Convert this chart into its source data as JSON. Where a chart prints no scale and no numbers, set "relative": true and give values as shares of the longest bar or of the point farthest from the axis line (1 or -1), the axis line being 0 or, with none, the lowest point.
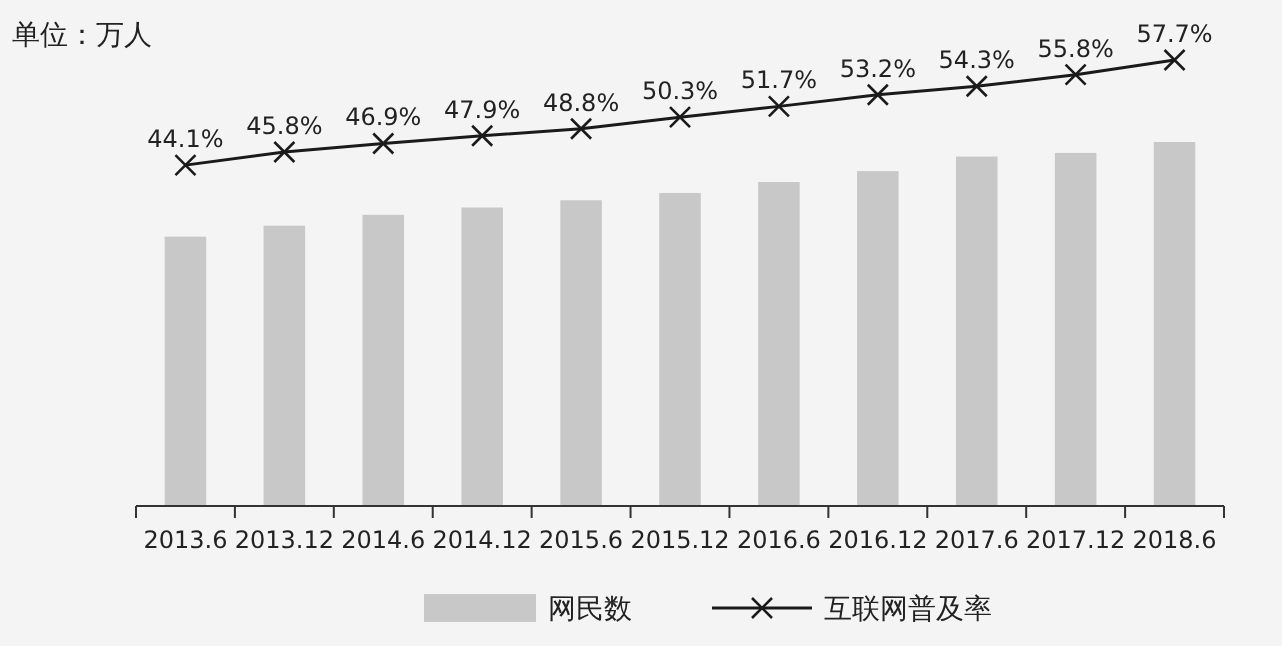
{
  "chart_data": [
    {
      "type": "bar",
      "relative": true,
      "categories": [
        "2013.6",
        "2013.12",
        "2014.6",
        "2014.12",
        "2015.6",
        "2015.12",
        "2016.6",
        "2016.12",
        "2017.6",
        "2017.12",
        "2018.6"
      ],
      "series": [
        {
          "name": "网民数",
          "color": "#c8c8c8",
          "values": [
            0.74,
            0.77,
            0.8,
            0.82,
            0.84,
            0.86,
            0.89,
            0.92,
            0.96,
            0.97,
            1
          ]
        }
      ],
      "legend": "bottom",
      "annotations": [
        "单位：万人"
      ]
    },
    {
      "type": "line",
      "tick_labels": false,
      "categories": [
        "2013.6",
        "2013.12",
        "2014.6",
        "2014.12",
        "2015.6",
        "2015.12",
        "2016.6",
        "2016.12",
        "2017.6",
        "2017.12",
        "2018.6"
      ],
      "series": [
        {
          "name": "互联网普及率",
          "marker": "cross",
          "color": "#1a1a1a",
          "values": [
            44.1,
            45.8,
            46.9,
            47.9,
            48.8,
            50.3,
            51.7,
            53.2,
            54.3,
            55.8,
            57.7
          ],
          "value_labels": [
            "44.1%",
            "45.8%",
            "46.9%",
            "47.9%",
            "48.8%",
            "50.3%",
            "51.7%",
            "53.2%",
            "54.3%",
            "55.8%",
            "57.7%"
          ]
        }
      ],
      "legend": "bottom"
    }
  ]
}
